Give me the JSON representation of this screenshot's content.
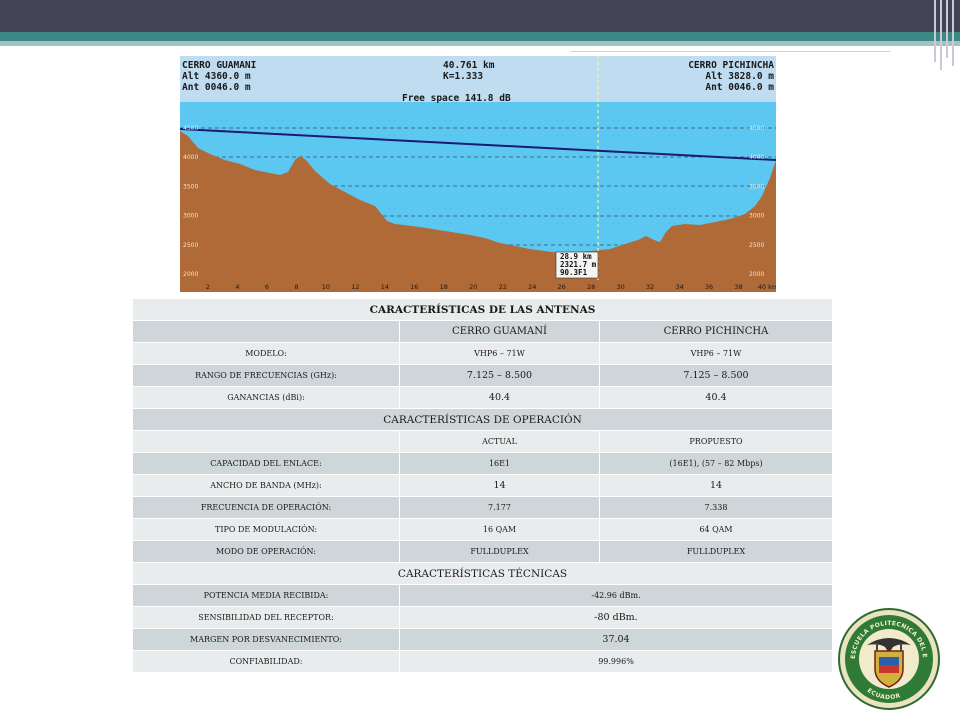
{
  "profile": {
    "left_site": {
      "name": "CERRO GUAMANI",
      "alt": "Alt 4360.0 m",
      "ant": "Ant 0046.0 m"
    },
    "right_site": {
      "name": "CERRO PICHINCHA",
      "alt": "Alt 3828.0 m",
      "ant": "Ant 0046.0 m"
    },
    "distance": "40.761 km",
    "k_factor": "K=1.333",
    "free_space": "Free space 141.8 dB",
    "readout": [
      "28.9 km",
      "2321.7 m",
      "90.3F1"
    ],
    "y_ticks": [
      "4500",
      "4000",
      "3500",
      "3000",
      "2500",
      "2000"
    ],
    "x_ticks": [
      "2",
      "4",
      "6",
      "8",
      "10",
      "12",
      "14",
      "16",
      "18",
      "20",
      "22",
      "24",
      "26",
      "28",
      "30",
      "32",
      "34",
      "36",
      "38",
      "40 km"
    ],
    "colors": {
      "sky": "#5cc8f2",
      "terrain": "#b06a37",
      "header": "#bfdcf0",
      "beam": "#1a1a70"
    }
  },
  "table": {
    "title": "CARACTERÍSTICAS DE LAS ANTENAS",
    "antenna_header": [
      "",
      "CERRO GUAMANÍ",
      "CERRO PICHINCHA"
    ],
    "antenna_rows": [
      [
        "MODELO:",
        "VHP6 – 71W",
        "VHP6 – 71W"
      ],
      [
        "RANGO DE FRECUENCIAS (GHz):",
        "7.125 – 8.500",
        "7.125 – 8.500"
      ],
      [
        "GANANCIAS (dBi):",
        "40.4",
        "40.4"
      ]
    ],
    "operation_title": "CARACTERÍSTICAS DE OPERACIÓN",
    "operation_header": [
      "",
      "ACTUAL",
      "PROPUESTO"
    ],
    "operation_rows": [
      [
        "CAPACIDAD DEL ENLACE:",
        "16E1",
        "(16E1), (57 – 82 Mbps)"
      ],
      [
        "ANCHO DE BANDA (MHz):",
        "14",
        "14"
      ],
      [
        "FRECUENCIA DE OPERACIÓN:",
        "7.177",
        "7.338"
      ],
      [
        "TIPO DE MODULACIÓN:",
        "16 QAM",
        "64 QAM"
      ],
      [
        "MODO DE OPERACIÓN:",
        "FULLDUPLEX",
        "FULLDUPLEX"
      ]
    ],
    "technical_title": "CARACTERÍSTICAS TÉCNICAS",
    "technical_rows": [
      [
        "POTENCIA MEDIA RECIBIDA:",
        "-42.96 dBm."
      ],
      [
        "SENSIBILIDAD DEL RECEPTOR:",
        "-80 dBm."
      ],
      [
        "MARGEN POR DESVANECIMIENTO:",
        "37.04"
      ],
      [
        "CONFIABILIDAD:",
        "99.996%"
      ]
    ]
  },
  "seal": {
    "text_top": "ESCUELA POLITECNICA DEL EJERCITO",
    "text_bottom": "ECUADOR"
  }
}
